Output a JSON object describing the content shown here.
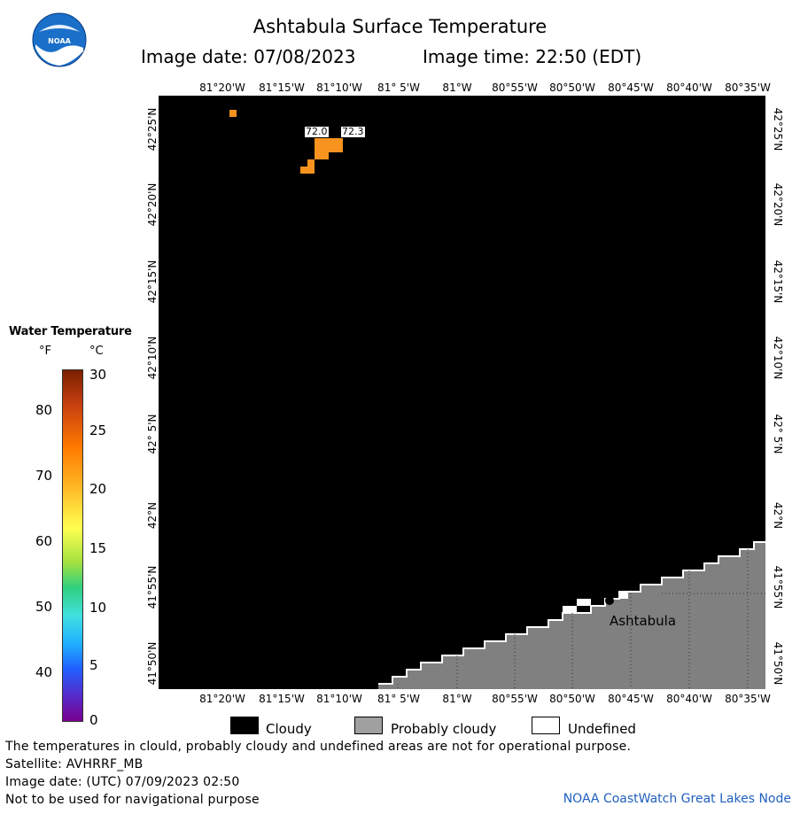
{
  "header": {
    "title": "Ashtabula Surface Temperature",
    "image_date": "Image date: 07/08/2023",
    "image_time": "Image time: 22:50 (EDT)"
  },
  "axes": {
    "lon_labels": [
      "81°20'W",
      "81°15'W",
      "81°10'W",
      "81° 5'W",
      "81°W",
      "80°55'W",
      "80°50'W",
      "80°45'W",
      "80°40'W",
      "80°35'W"
    ],
    "lat_labels": [
      "42°25'N",
      "42°20'N",
      "42°15'N",
      "42°10'N",
      "42° 5'N",
      "42°N",
      "41°55'N",
      "41°50'N"
    ]
  },
  "map": {
    "place_label": "Ashtabula",
    "temp_labels": [
      "72.0",
      "72.3"
    ],
    "colors": {
      "cloudy": "#000000",
      "probably_cloudy": "#808080",
      "undefined": "#ffffff",
      "warm_pixel": "#f7931e"
    }
  },
  "legend": {
    "title": "Water Temperature",
    "unit_f": "°F",
    "unit_c": "°C",
    "f_ticks": [
      "80",
      "70",
      "60",
      "50",
      "40"
    ],
    "c_ticks": [
      "30",
      "25",
      "20",
      "15",
      "10",
      "5",
      "0"
    ],
    "categories": [
      "Cloudy",
      "Probably cloudy",
      "Undefined"
    ]
  },
  "footer": {
    "line1": "The temperatures in clould, probably cloudy and undefined areas are not for operational purpose.",
    "line2": "Satellite: AVHRRF_MB",
    "line3": "Image date: (UTC) 07/09/2023  02:50",
    "line4": "Not to be used for navigational purpose",
    "credit": "NOAA CoastWatch Great Lakes Node"
  },
  "logo": {
    "text": "NOAA"
  }
}
